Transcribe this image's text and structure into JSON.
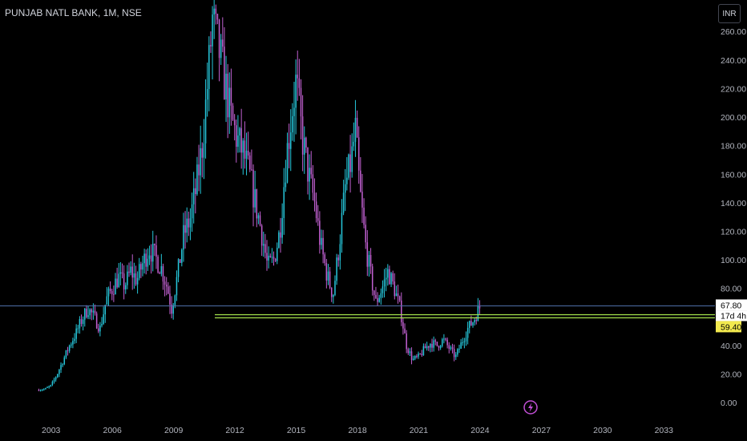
{
  "header": {
    "symbol_title": "PUNJAB NATL BANK, 1M, NSE",
    "currency_button": "INR"
  },
  "colors": {
    "background": "#000000",
    "up_candle": "#26c6da",
    "down_candle": "#c060d0",
    "support_line": "#a5e34c",
    "current_price_line": "#4f6fa8",
    "price_label_highlight": "#f2e94e",
    "alert_icon": "#c24fd6"
  },
  "chart_data": {
    "type": "candlestick",
    "title": "PUNJAB NATL BANK, 1M, NSE",
    "x_axis": {
      "ticks": [
        "2003",
        "2006",
        "2009",
        "2012",
        "2015",
        "2018",
        "2021",
        "2024",
        "2027",
        "2030",
        "2033"
      ],
      "range": [
        2000.5,
        2035.5
      ]
    },
    "y_axis": {
      "ticks": [
        "0.00",
        "20.00",
        "40.00",
        "60.00",
        "80.00",
        "100.00",
        "120.00",
        "140.00",
        "160.00",
        "180.00",
        "200.00",
        "220.00",
        "240.00",
        "260.00"
      ],
      "range": [
        -10,
        282
      ],
      "position": "right"
    },
    "series": [
      {
        "points": [
          [
            2002.4,
            9
          ],
          [
            2002.7,
            9.5
          ],
          [
            2003.0,
            12
          ],
          [
            2003.3,
            20
          ],
          [
            2003.6,
            30
          ],
          [
            2003.9,
            40
          ],
          [
            2004.2,
            48
          ],
          [
            2004.5,
            58
          ],
          [
            2004.8,
            66
          ],
          [
            2005.1,
            60
          ],
          [
            2005.4,
            52
          ],
          [
            2005.7,
            72
          ],
          [
            2006.0,
            80
          ],
          [
            2006.3,
            88
          ],
          [
            2006.6,
            82
          ],
          [
            2006.9,
            92
          ],
          [
            2007.2,
            86
          ],
          [
            2007.5,
            98
          ],
          [
            2007.8,
            108
          ],
          [
            2008.1,
            102
          ],
          [
            2008.4,
            94
          ],
          [
            2008.7,
            80
          ],
          [
            2008.9,
            66
          ],
          [
            2009.2,
            90
          ],
          [
            2009.5,
            118
          ],
          [
            2009.8,
            128
          ],
          [
            2010.1,
            150
          ],
          [
            2010.4,
            180
          ],
          [
            2010.7,
            230
          ],
          [
            2010.9,
            268
          ],
          [
            2011.2,
            248
          ],
          [
            2011.5,
            225
          ],
          [
            2011.8,
            200
          ],
          [
            2012.1,
            185
          ],
          [
            2012.4,
            175
          ],
          [
            2012.7,
            160
          ],
          [
            2013.0,
            140
          ],
          [
            2013.3,
            120
          ],
          [
            2013.6,
            95
          ],
          [
            2013.9,
            100
          ],
          [
            2014.2,
            120
          ],
          [
            2014.5,
            170
          ],
          [
            2014.8,
            205
          ],
          [
            2015.0,
            225
          ],
          [
            2015.3,
            185
          ],
          [
            2015.6,
            160
          ],
          [
            2015.9,
            140
          ],
          [
            2016.2,
            110
          ],
          [
            2016.5,
            90
          ],
          [
            2016.8,
            75
          ],
          [
            2017.1,
            110
          ],
          [
            2017.4,
            150
          ],
          [
            2017.7,
            170
          ],
          [
            2017.9,
            190
          ],
          [
            2018.1,
            150
          ],
          [
            2018.4,
            110
          ],
          [
            2018.7,
            85
          ],
          [
            2018.9,
            70
          ],
          [
            2019.2,
            80
          ],
          [
            2019.5,
            92
          ],
          [
            2019.8,
            80
          ],
          [
            2020.1,
            65
          ],
          [
            2020.4,
            40
          ],
          [
            2020.7,
            30
          ],
          [
            2021.0,
            32
          ],
          [
            2021.3,
            38
          ],
          [
            2021.6,
            42
          ],
          [
            2021.9,
            40
          ],
          [
            2022.2,
            44
          ],
          [
            2022.5,
            38
          ],
          [
            2022.8,
            32
          ],
          [
            2023.1,
            42
          ],
          [
            2023.4,
            52
          ],
          [
            2023.7,
            58
          ],
          [
            2023.9,
            65
          ],
          [
            2024.05,
            68
          ]
        ]
      }
    ],
    "horizontal_lines": [
      {
        "value": 67.8,
        "label": "67.80"
      },
      {
        "value": 61.6
      },
      {
        "value": 59.4,
        "label": "59.40"
      }
    ],
    "countdown_label": "17d 4h",
    "grid": false,
    "legend": "none"
  }
}
